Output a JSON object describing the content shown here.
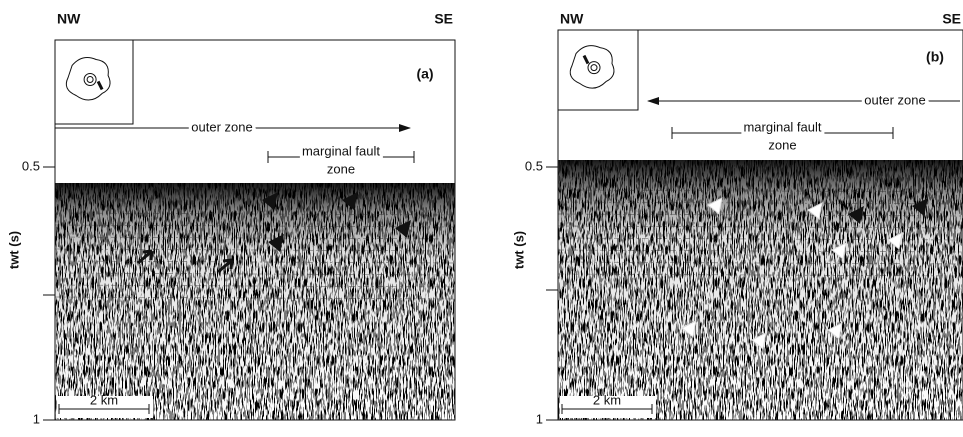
{
  "panels": [
    {
      "label": "(a)",
      "left": "NW",
      "right": "SE",
      "axis_label": "twt (s)",
      "ticks": [
        "0.5",
        "1"
      ],
      "arrow_label": "outer zone",
      "bracket_label": [
        "marginal fault",
        "zone"
      ],
      "scale": "2 km"
    },
    {
      "label": "(b)",
      "left": "NW",
      "right": "SE",
      "axis_label": "twt (s)",
      "ticks": [
        "0.5",
        "1"
      ],
      "arrow_label": "outer zone",
      "bracket_label": [
        "marginal fault",
        "zone"
      ],
      "scale": "2 km"
    }
  ]
}
